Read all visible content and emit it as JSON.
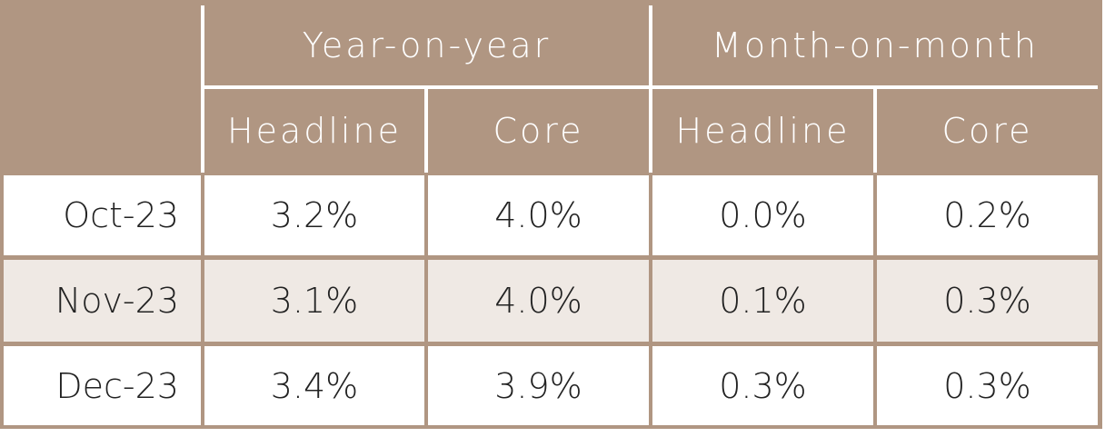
{
  "table": {
    "header": {
      "groups": [
        "Year-on-year",
        "Month-on-month"
      ],
      "columns": [
        "Headline",
        "Core",
        "Headline",
        "Core"
      ]
    },
    "rows": [
      [
        "Oct-23",
        "3.2%",
        "4.0%",
        "0.0%",
        "0.2%"
      ],
      [
        "Nov-23",
        "3.1%",
        "4.0%",
        "0.1%",
        "0.3%"
      ],
      [
        "Dec-23",
        "3.4%",
        "3.9%",
        "0.3%",
        "0.3%"
      ]
    ]
  }
}
